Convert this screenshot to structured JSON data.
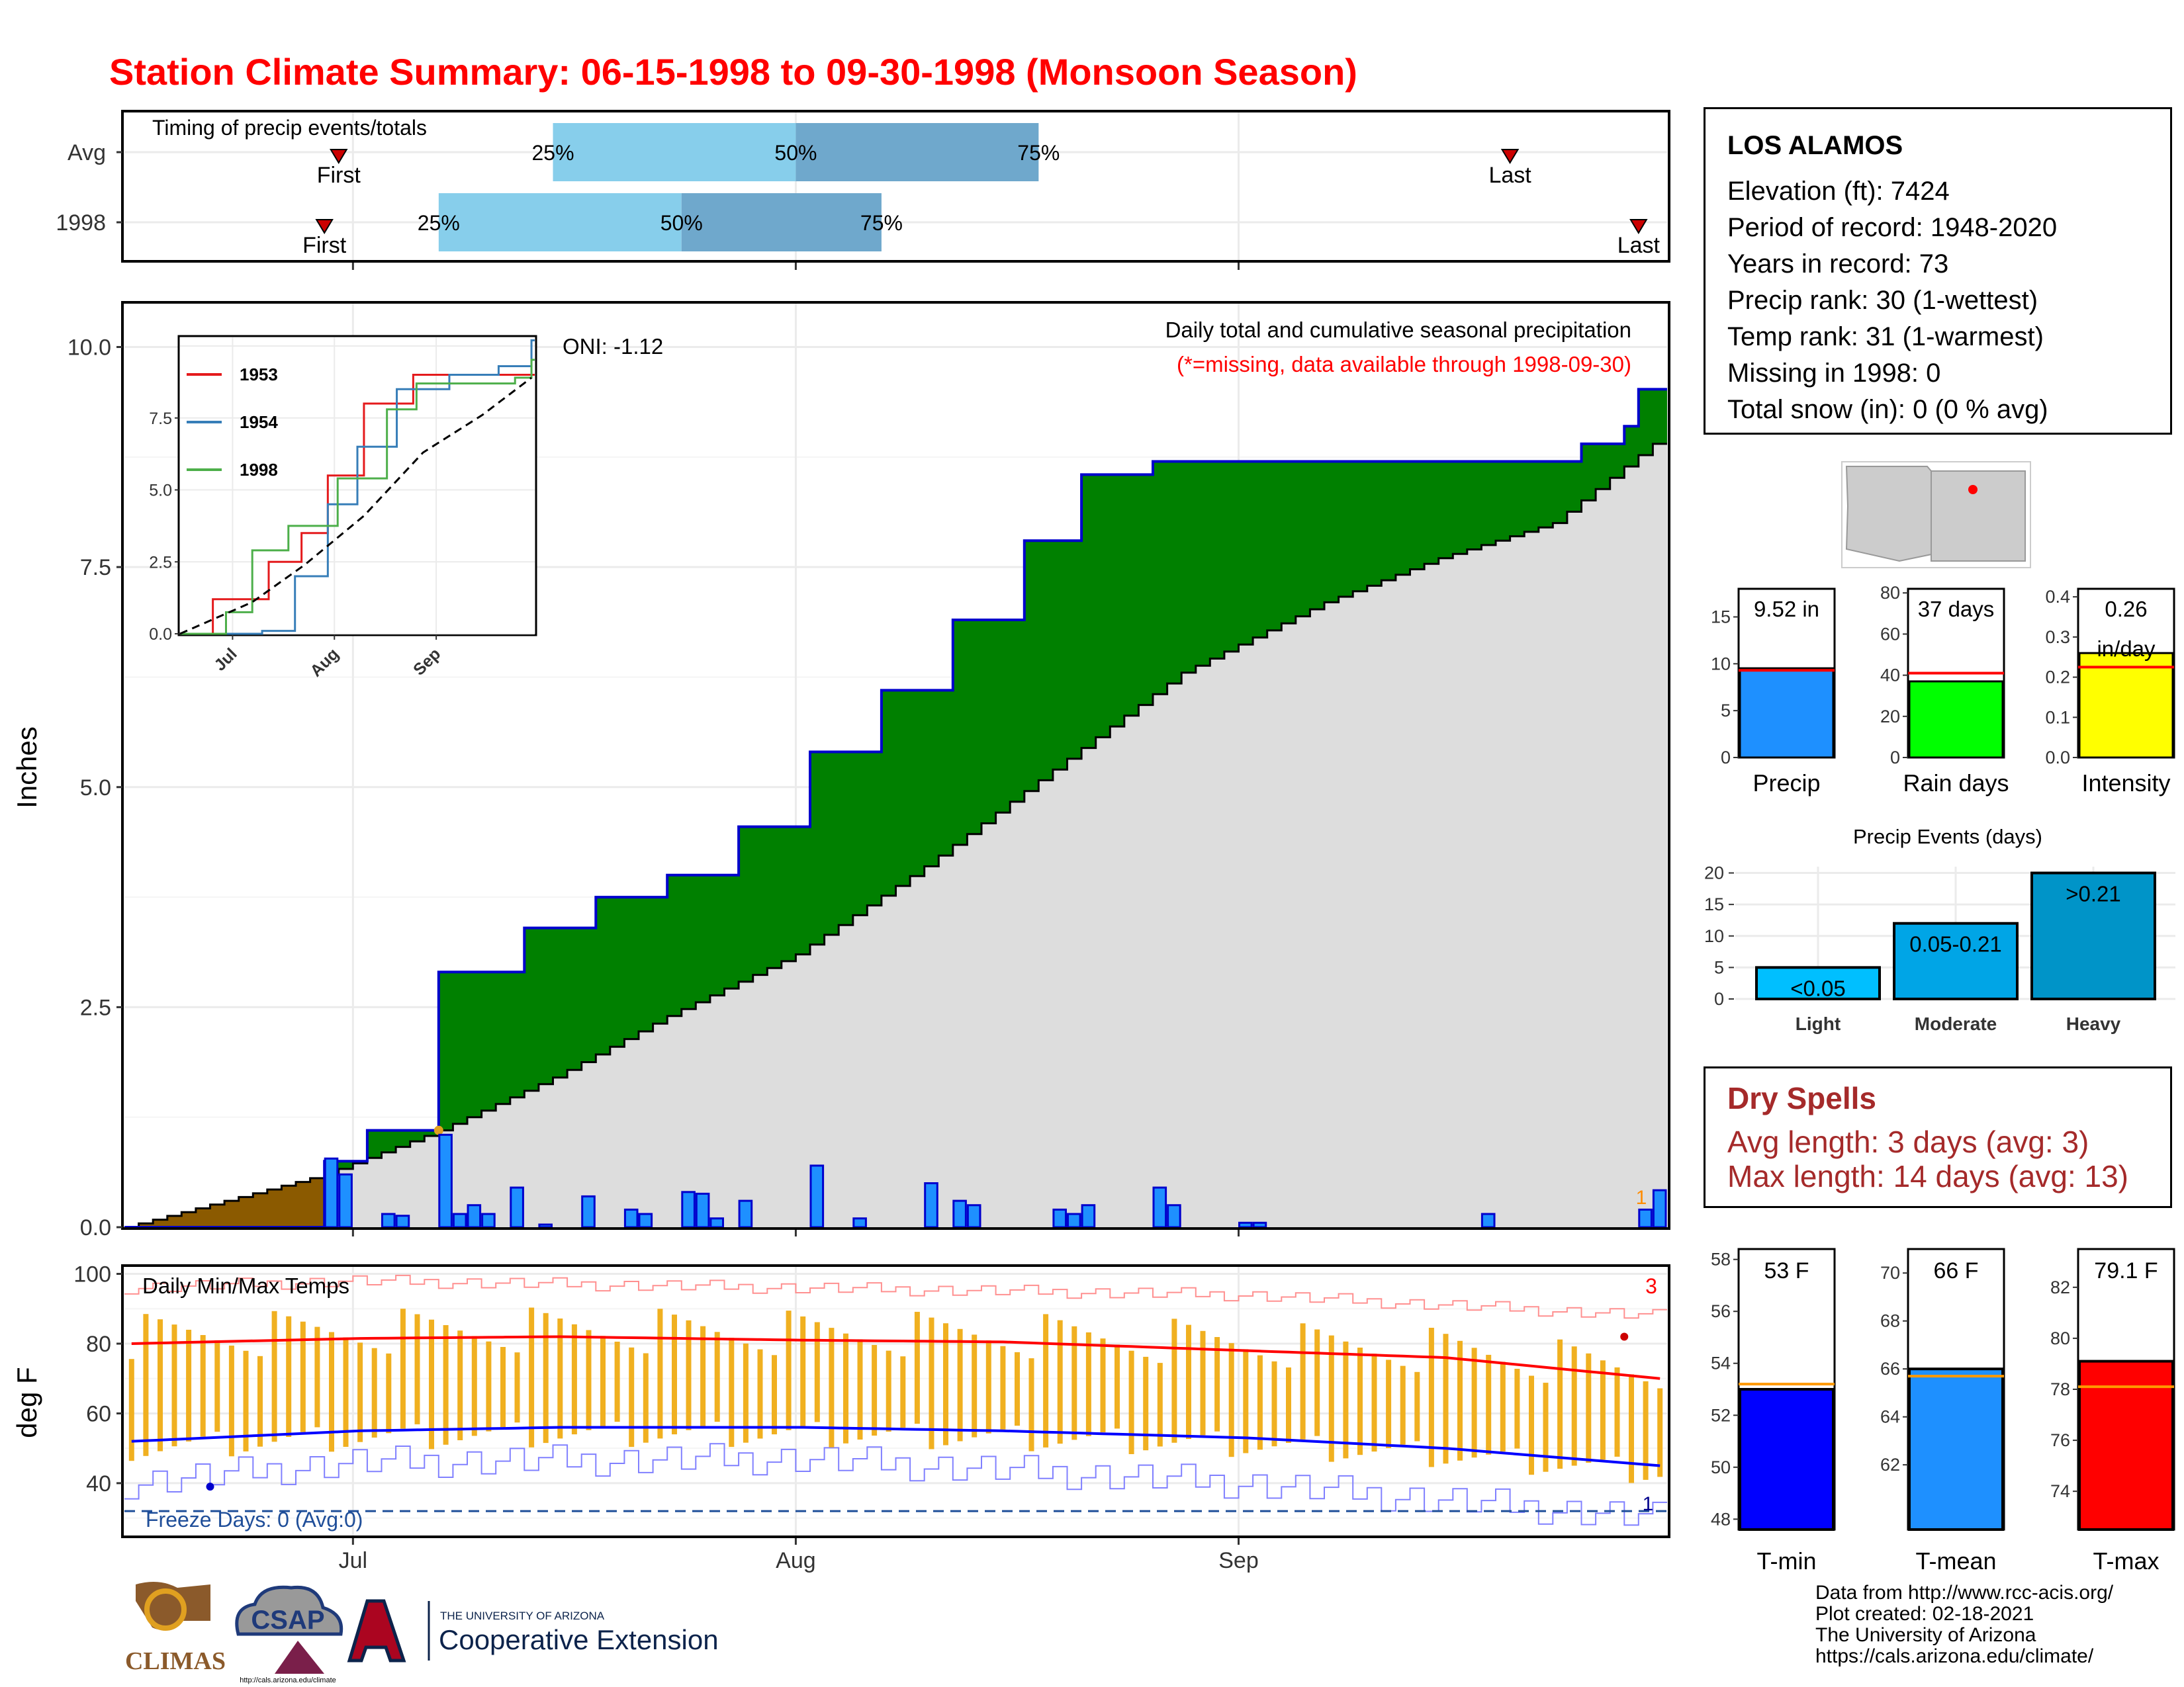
{
  "title": "Station Climate Summary: 06-15-1998 to 09-30-1998 (Monsoon Season)",
  "timing": {
    "label": "Timing of precip events/totals",
    "rows": [
      {
        "name": "Avg",
        "first_label": "First",
        "last_label": "Last",
        "q_labels": [
          "25%",
          "50%",
          "75%"
        ],
        "first_date": "1998-06-30",
        "q25_date": "1998-07-15",
        "q50_date": "1998-08-01",
        "q75_date": "1998-08-18",
        "last_date": "1998-09-20"
      },
      {
        "name": "1998",
        "first_label": "First",
        "last_label": "Last",
        "q_labels": [
          "25%",
          "50%",
          "75%"
        ],
        "first_date": "1998-06-29",
        "q25_date": "1998-07-07",
        "q50_date": "1998-07-24",
        "q75_date": "1998-08-07",
        "last_date": "1998-09-29"
      }
    ]
  },
  "precip_panel": {
    "title": "Daily total and cumulative seasonal precipitation",
    "subtitle": "(*=missing, data available through 1998-09-30)",
    "ylabel": "Inches",
    "yticks": [
      "0.0",
      "2.5",
      "5.0",
      "7.5",
      "10.0"
    ],
    "oni_label": "ONI: -1.12",
    "missing_marker": "1"
  },
  "inset": {
    "series_names": [
      "1953",
      "1954",
      "1998"
    ],
    "yticks": [
      "0.0",
      "2.5",
      "5.0",
      "7.5"
    ],
    "xticks": [
      "Jul",
      "Aug",
      "Sep"
    ]
  },
  "temp_panel": {
    "title": "Daily Min/Max Temps",
    "ylabel": "deg F",
    "yticks": [
      "40",
      "60",
      "80",
      "100"
    ],
    "freeze_label": "Freeze Days: 0 (Avg:0)",
    "record_high_count": "3",
    "record_low_count": "1"
  },
  "x_axis": {
    "ticks": [
      "Jul",
      "Aug",
      "Sep"
    ]
  },
  "station": {
    "name": "LOS ALAMOS",
    "lines": [
      "Elevation (ft): 7424",
      "Period of record: 1948-2020",
      "Years in record: 73",
      "Precip rank: 30 (1-wettest)",
      "Temp rank: 31 (1-warmest)",
      "Missing in 1998: 0",
      "Total snow (in): 0 (0 % avg)"
    ]
  },
  "summary_bars": [
    {
      "name": "Precip",
      "label_line1": "9.52 in",
      "label_line2": "",
      "value": 9.52,
      "avg": 9.3,
      "ymax": 18,
      "yticks": [
        "0",
        "5",
        "10",
        "15"
      ],
      "tickvals": [
        0,
        5,
        10,
        15
      ],
      "color": "#1e90ff"
    },
    {
      "name": "Rain days",
      "label_line1": "37 days",
      "label_line2": "",
      "value": 37,
      "avg": 41,
      "ymax": 82,
      "yticks": [
        "0",
        "20",
        "40",
        "60",
        "80"
      ],
      "tickvals": [
        0,
        20,
        40,
        60,
        80
      ],
      "color": "#00ff00"
    },
    {
      "name": "Intensity",
      "label_line1": "0.26",
      "label_line2": "in/day",
      "value": 0.26,
      "avg": 0.225,
      "ymax": 0.42,
      "yticks": [
        "0.0",
        "0.1",
        "0.2",
        "0.3",
        "0.4"
      ],
      "tickvals": [
        0,
        0.1,
        0.2,
        0.3,
        0.4
      ],
      "color": "#ffff00"
    }
  ],
  "precip_events": {
    "title": "Precip Events (days)",
    "categories": [
      "Light",
      "Moderate",
      "Heavy"
    ],
    "labels": [
      "<0.05",
      "0.05-0.21",
      ">0.21"
    ],
    "values": [
      5,
      12,
      20
    ],
    "yticks": [
      "0",
      "5",
      "10",
      "15",
      "20"
    ],
    "colors": [
      "#00bfff",
      "#00a5e6",
      "#0094c8"
    ]
  },
  "dry_spells": {
    "title": "Dry Spells",
    "avg_line": "Avg length: 3 days (avg: 3)",
    "max_line": "Max length: 14 days (avg: 13)"
  },
  "temp_bars": [
    {
      "name": "T-min",
      "label": "53 F",
      "value": 53,
      "avg": 53.2,
      "ymin": 47.6,
      "ymax": 58.4,
      "yticks": [
        "48",
        "50",
        "52",
        "54",
        "56",
        "58"
      ],
      "tickvals": [
        48,
        50,
        52,
        54,
        56,
        58
      ],
      "color": "#0000ff"
    },
    {
      "name": "T-mean",
      "label": "66 F",
      "value": 66,
      "avg": 65.7,
      "ymin": 59.3,
      "ymax": 71,
      "yticks": [
        "62",
        "64",
        "66",
        "68",
        "70"
      ],
      "tickvals": [
        62,
        64,
        66,
        68,
        70
      ],
      "color": "#1e90ff"
    },
    {
      "name": "T-max",
      "label": "79.1 F",
      "value": 79.1,
      "avg": 78.1,
      "ymin": 72.5,
      "ymax": 83.5,
      "yticks": [
        "74",
        "76",
        "78",
        "80",
        "82"
      ],
      "tickvals": [
        74,
        76,
        78,
        80,
        82
      ],
      "color": "#ff0000"
    }
  ],
  "credits": [
    "Data from http://www.rcc-acis.org/",
    "Plot created: 02-18-2021",
    "The University of Arizona",
    "https://cals.arizona.edu/climate/"
  ],
  "logos": {
    "climas": "CLIMAS",
    "csap": "CSAP",
    "csap_url": "http://cals.arizona.edu/climate",
    "ua_small": "THE UNIVERSITY OF ARIZONA",
    "ua_big": "Cooperative Extension"
  },
  "colors": {
    "title": "#ff0000",
    "green": "#008000",
    "brown": "#8b5a00",
    "avg_fill": "#dddddd",
    "bar_blue": "#1e90ff",
    "tmax": "#ff0000",
    "tmin": "#0000ff",
    "temp_bar": "#f0b020",
    "q_light": "#87ceeb",
    "q_dark": "#6fa8cc",
    "dry": "#a52a2a"
  },
  "chart_data": [
    {
      "type": "area",
      "title": "Daily total and cumulative seasonal precipitation",
      "ylabel": "Inches",
      "ylim": [
        0,
        10.5
      ],
      "xlim": [
        "1998-06-15",
        "1998-09-30"
      ],
      "series": [
        {
          "name": "Cumulative 1998",
          "x": [
            "1998-06-15",
            "1998-06-29",
            "1998-07-02",
            "1998-07-07",
            "1998-07-13",
            "1998-07-18",
            "1998-07-23",
            "1998-07-28",
            "1998-08-02",
            "1998-08-07",
            "1998-08-12",
            "1998-08-17",
            "1998-08-21",
            "1998-08-26",
            "1998-08-31",
            "1998-09-15",
            "1998-09-25",
            "1998-09-28",
            "1998-09-29",
            "1998-09-30"
          ],
          "values": [
            0.0,
            0.75,
            1.1,
            2.9,
            3.4,
            3.75,
            4.0,
            4.55,
            5.4,
            6.1,
            6.9,
            7.8,
            8.55,
            8.7,
            8.7,
            8.7,
            8.9,
            9.1,
            9.52,
            9.52
          ]
        },
        {
          "name": "Cumulative average",
          "x": [
            "1998-06-15",
            "1998-06-29",
            "1998-07-07",
            "1998-07-15",
            "1998-07-23",
            "1998-08-01",
            "1998-08-10",
            "1998-08-19",
            "1998-08-28",
            "1998-09-07",
            "1998-09-15",
            "1998-09-23",
            "1998-09-30"
          ],
          "values": [
            0.0,
            0.6,
            1.1,
            1.7,
            2.4,
            3.1,
            4.1,
            5.2,
            6.3,
            7.1,
            7.6,
            8.0,
            8.9
          ]
        },
        {
          "name": "Daily precip",
          "x": [
            "1998-06-29",
            "1998-06-30",
            "1998-07-03",
            "1998-07-04",
            "1998-07-07",
            "1998-07-08",
            "1998-07-09",
            "1998-07-10",
            "1998-07-12",
            "1998-07-14",
            "1998-07-17",
            "1998-07-20",
            "1998-07-21",
            "1998-07-24",
            "1998-07-25",
            "1998-07-26",
            "1998-07-28",
            "1998-08-02",
            "1998-08-05",
            "1998-08-10",
            "1998-08-12",
            "1998-08-13",
            "1998-08-19",
            "1998-08-20",
            "1998-08-21",
            "1998-08-26",
            "1998-08-27",
            "1998-09-01",
            "1998-09-02",
            "1998-09-18",
            "1998-09-29",
            "1998-09-30"
          ],
          "values": [
            0.78,
            0.6,
            0.15,
            0.13,
            1.05,
            0.15,
            0.25,
            0.15,
            0.45,
            0.03,
            0.35,
            0.2,
            0.15,
            0.4,
            0.38,
            0.1,
            0.3,
            0.7,
            0.1,
            0.5,
            0.3,
            0.25,
            0.2,
            0.15,
            0.25,
            0.45,
            0.25,
            0.05,
            0.05,
            0.15,
            0.2,
            0.42
          ]
        }
      ]
    },
    {
      "type": "line",
      "series": [
        {
          "name": "1953",
          "x": [
            "1998-06-15",
            "1998-06-25",
            "1998-07-07",
            "1998-07-12",
            "1998-07-22",
            "1998-07-30",
            "1998-08-10",
            "1998-08-25",
            "1998-09-30"
          ],
          "values": [
            0,
            1.2,
            1.2,
            2.5,
            3.5,
            5.5,
            8.0,
            9.0,
            9.0
          ]
        },
        {
          "name": "1954",
          "x": [
            "1998-06-15",
            "1998-07-10",
            "1998-07-20",
            "1998-07-30",
            "1998-08-08",
            "1998-08-20",
            "1998-09-05",
            "1998-09-20",
            "1998-09-30"
          ],
          "values": [
            0,
            0.1,
            2.0,
            4.5,
            6.5,
            8.5,
            9.0,
            9.3,
            10.2
          ]
        },
        {
          "name": "1998",
          "x": [
            "1998-06-15",
            "1998-06-29",
            "1998-07-07",
            "1998-07-18",
            "1998-08-02",
            "1998-08-17",
            "1998-08-26",
            "1998-09-25",
            "1998-09-30"
          ],
          "values": [
            0,
            0.75,
            2.9,
            3.75,
            5.4,
            7.8,
            8.7,
            8.9,
            9.52
          ]
        },
        {
          "name": "Average",
          "x": [
            "1998-06-15",
            "1998-07-07",
            "1998-07-23",
            "1998-08-10",
            "1998-08-28",
            "1998-09-15",
            "1998-09-30"
          ],
          "values": [
            0,
            1.1,
            2.4,
            4.1,
            6.3,
            7.6,
            8.9
          ]
        }
      ],
      "ylim": [
        0,
        10.3
      ]
    },
    {
      "type": "line",
      "title": "Daily Min/Max Temps",
      "ylabel": "deg F",
      "ylim": [
        25,
        102
      ],
      "series": [
        {
          "name": "Avg max",
          "x": [
            "1998-06-15",
            "1998-07-01",
            "1998-07-15",
            "1998-08-01",
            "1998-08-15",
            "1998-09-01",
            "1998-09-15",
            "1998-09-30"
          ],
          "values": [
            80,
            81.5,
            82,
            81,
            80.5,
            78,
            76,
            70
          ]
        },
        {
          "name": "Avg min",
          "x": [
            "1998-06-15",
            "1998-07-01",
            "1998-07-15",
            "1998-08-01",
            "1998-08-15",
            "1998-09-01",
            "1998-09-15",
            "1998-09-30"
          ],
          "values": [
            52,
            55,
            56,
            56,
            55,
            53,
            50,
            45
          ]
        },
        {
          "name": "Record high",
          "x": [
            "1998-06-15",
            "1998-07-01",
            "1998-08-01",
            "1998-09-01",
            "1998-09-30"
          ],
          "values": [
            96,
            98,
            96,
            94,
            88
          ]
        },
        {
          "name": "Record low",
          "x": [
            "1998-06-15",
            "1998-07-01",
            "1998-08-01",
            "1998-09-01",
            "1998-09-30"
          ],
          "values": [
            40,
            46,
            47,
            40,
            30
          ]
        }
      ],
      "freeze_threshold": 32
    },
    {
      "type": "bar",
      "title": "Precip Events (days)",
      "categories": [
        "Light",
        "Moderate",
        "Heavy"
      ],
      "values": [
        5,
        12,
        20
      ],
      "ylim": [
        0,
        21
      ]
    }
  ]
}
